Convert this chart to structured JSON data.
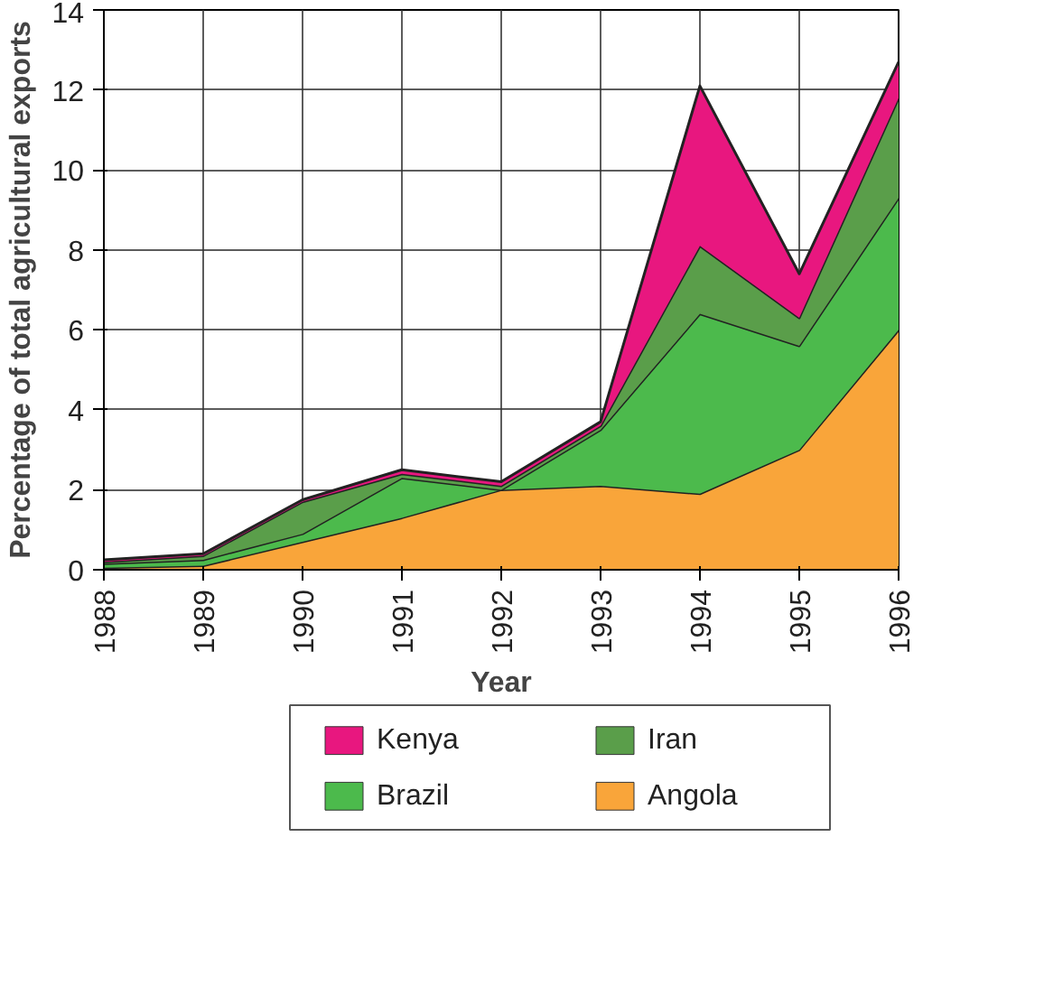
{
  "chart_data": {
    "type": "area",
    "stacked": true,
    "xlabel": "Year",
    "ylabel": "Percentage of total agricultural exports",
    "x": [
      1988,
      1989,
      1990,
      1991,
      1992,
      1993,
      1994,
      1995,
      1996
    ],
    "xlim": [
      1988,
      1996
    ],
    "xticks": [
      1988,
      1989,
      1990,
      1991,
      1992,
      1993,
      1994,
      1995,
      1996
    ],
    "ylim": [
      0,
      14
    ],
    "yticks": [
      0,
      2,
      4,
      6,
      8,
      10,
      12,
      14
    ],
    "grid": true,
    "legend": "bottom",
    "series": [
      {
        "name": "Angola",
        "color": "#f9a53a",
        "values": [
          0.05,
          0.1,
          0.7,
          1.3,
          2.0,
          2.1,
          1.9,
          3.0,
          6.0
        ]
      },
      {
        "name": "Brazil",
        "color": "#4cba4c",
        "values": [
          0.1,
          0.15,
          0.2,
          1.0,
          0.0,
          1.4,
          4.5,
          2.6,
          3.3
        ]
      },
      {
        "name": "Iran",
        "color": "#5a9e4a",
        "values": [
          0.05,
          0.1,
          0.8,
          0.1,
          0.1,
          0.1,
          1.7,
          0.7,
          2.5
        ]
      },
      {
        "name": "Kenya",
        "color": "#e8177f",
        "values": [
          0.05,
          0.05,
          0.05,
          0.1,
          0.1,
          0.1,
          4.0,
          1.1,
          0.9
        ]
      }
    ]
  }
}
